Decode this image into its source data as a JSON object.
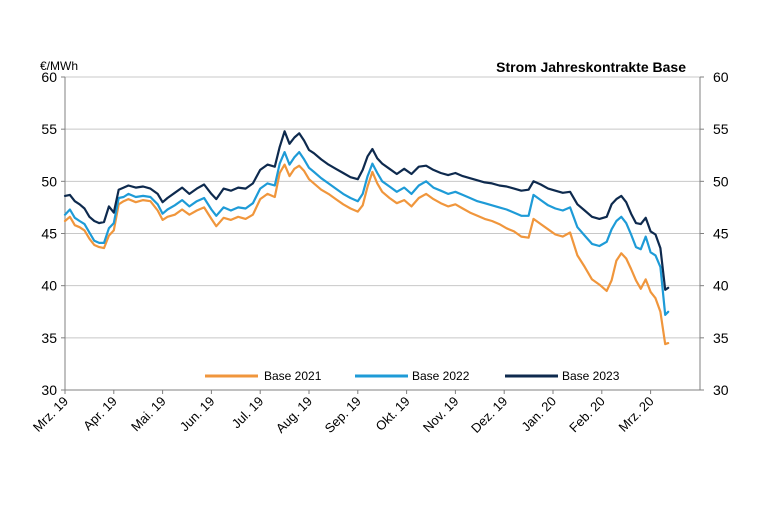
{
  "chart_data": {
    "type": "line",
    "title": "Strom Jahreskontrakte Base",
    "ylabel": "€/MWh",
    "ylim": [
      30,
      60
    ],
    "yticks": [
      30,
      35,
      40,
      45,
      50,
      55,
      60
    ],
    "grid": true,
    "legend_position": "bottom-center",
    "x_tick_labels": [
      "Mrz. 19",
      "Apr. 19",
      "Mai. 19",
      "Jun. 19",
      "Jul. 19",
      "Aug. 19",
      "Sep. 19",
      "Okt. 19",
      "Nov. 19",
      "Dez. 19",
      "Jan. 20",
      "Feb. 20",
      "Mrz. 20"
    ],
    "x_unit": "months since Mrz. 19",
    "xlim": [
      0,
      12.75
    ],
    "series": [
      {
        "name": "Base 2021",
        "color": "#F0963C",
        "points": [
          [
            0,
            46.2
          ],
          [
            0.1,
            46.6
          ],
          [
            0.2,
            45.8
          ],
          [
            0.3,
            45.6
          ],
          [
            0.4,
            45.3
          ],
          [
            0.5,
            44.5
          ],
          [
            0.6,
            43.9
          ],
          [
            0.7,
            43.7
          ],
          [
            0.8,
            43.6
          ],
          [
            0.9,
            44.8
          ],
          [
            1.0,
            45.3
          ],
          [
            1.1,
            47.8
          ],
          [
            1.2,
            48.1
          ],
          [
            1.3,
            48.3
          ],
          [
            1.45,
            48.0
          ],
          [
            1.6,
            48.2
          ],
          [
            1.75,
            48.1
          ],
          [
            1.9,
            47.2
          ],
          [
            2.0,
            46.3
          ],
          [
            2.1,
            46.6
          ],
          [
            2.25,
            46.8
          ],
          [
            2.4,
            47.3
          ],
          [
            2.55,
            46.8
          ],
          [
            2.7,
            47.2
          ],
          [
            2.85,
            47.5
          ],
          [
            3.0,
            46.4
          ],
          [
            3.1,
            45.7
          ],
          [
            3.25,
            46.5
          ],
          [
            3.4,
            46.3
          ],
          [
            3.55,
            46.6
          ],
          [
            3.7,
            46.4
          ],
          [
            3.85,
            46.8
          ],
          [
            4.0,
            48.3
          ],
          [
            4.15,
            48.8
          ],
          [
            4.3,
            48.5
          ],
          [
            4.4,
            50.8
          ],
          [
            4.5,
            51.6
          ],
          [
            4.6,
            50.5
          ],
          [
            4.7,
            51.2
          ],
          [
            4.8,
            51.5
          ],
          [
            4.9,
            51.0
          ],
          [
            5.0,
            50.2
          ],
          [
            5.1,
            49.8
          ],
          [
            5.25,
            49.2
          ],
          [
            5.4,
            48.8
          ],
          [
            5.55,
            48.3
          ],
          [
            5.7,
            47.8
          ],
          [
            5.85,
            47.4
          ],
          [
            6.0,
            47.1
          ],
          [
            6.1,
            47.7
          ],
          [
            6.2,
            49.5
          ],
          [
            6.3,
            50.9
          ],
          [
            6.4,
            49.8
          ],
          [
            6.5,
            49.0
          ],
          [
            6.65,
            48.4
          ],
          [
            6.8,
            47.9
          ],
          [
            6.95,
            48.2
          ],
          [
            7.1,
            47.6
          ],
          [
            7.25,
            48.4
          ],
          [
            7.4,
            48.8
          ],
          [
            7.55,
            48.3
          ],
          [
            7.7,
            47.9
          ],
          [
            7.85,
            47.6
          ],
          [
            8.0,
            47.8
          ],
          [
            8.15,
            47.4
          ],
          [
            8.3,
            47.0
          ],
          [
            8.45,
            46.7
          ],
          [
            8.6,
            46.4
          ],
          [
            8.75,
            46.2
          ],
          [
            8.9,
            45.9
          ],
          [
            9.05,
            45.5
          ],
          [
            9.2,
            45.2
          ],
          [
            9.35,
            44.7
          ],
          [
            9.5,
            44.6
          ],
          [
            9.6,
            46.4
          ],
          [
            9.75,
            45.9
          ],
          [
            9.9,
            45.4
          ],
          [
            10.05,
            44.9
          ],
          [
            10.2,
            44.7
          ],
          [
            10.35,
            45.1
          ],
          [
            10.5,
            42.9
          ],
          [
            10.65,
            41.8
          ],
          [
            10.8,
            40.6
          ],
          [
            10.95,
            40.1
          ],
          [
            11.1,
            39.5
          ],
          [
            11.2,
            40.5
          ],
          [
            11.3,
            42.4
          ],
          [
            11.4,
            43.1
          ],
          [
            11.5,
            42.6
          ],
          [
            11.6,
            41.6
          ],
          [
            11.7,
            40.5
          ],
          [
            11.8,
            39.7
          ],
          [
            11.9,
            40.6
          ],
          [
            12.0,
            39.4
          ],
          [
            12.1,
            38.8
          ],
          [
            12.2,
            37.5
          ],
          [
            12.3,
            34.4
          ],
          [
            12.36,
            34.5
          ]
        ]
      },
      {
        "name": "Base 2022",
        "color": "#1E9BD7",
        "points": [
          [
            0,
            46.8
          ],
          [
            0.1,
            47.3
          ],
          [
            0.2,
            46.5
          ],
          [
            0.3,
            46.2
          ],
          [
            0.4,
            45.9
          ],
          [
            0.5,
            45.1
          ],
          [
            0.6,
            44.3
          ],
          [
            0.7,
            44.1
          ],
          [
            0.8,
            44.1
          ],
          [
            0.9,
            45.5
          ],
          [
            1.0,
            46.0
          ],
          [
            1.1,
            48.4
          ],
          [
            1.2,
            48.5
          ],
          [
            1.3,
            48.8
          ],
          [
            1.45,
            48.5
          ],
          [
            1.6,
            48.6
          ],
          [
            1.75,
            48.5
          ],
          [
            1.9,
            47.8
          ],
          [
            2.0,
            46.9
          ],
          [
            2.1,
            47.3
          ],
          [
            2.25,
            47.7
          ],
          [
            2.4,
            48.2
          ],
          [
            2.55,
            47.6
          ],
          [
            2.7,
            48.1
          ],
          [
            2.85,
            48.4
          ],
          [
            3.0,
            47.3
          ],
          [
            3.1,
            46.7
          ],
          [
            3.25,
            47.5
          ],
          [
            3.4,
            47.2
          ],
          [
            3.55,
            47.5
          ],
          [
            3.7,
            47.4
          ],
          [
            3.85,
            47.9
          ],
          [
            4.0,
            49.3
          ],
          [
            4.15,
            49.8
          ],
          [
            4.3,
            49.6
          ],
          [
            4.4,
            51.7
          ],
          [
            4.5,
            52.8
          ],
          [
            4.6,
            51.6
          ],
          [
            4.7,
            52.3
          ],
          [
            4.8,
            52.8
          ],
          [
            4.9,
            52.1
          ],
          [
            5.0,
            51.3
          ],
          [
            5.1,
            50.9
          ],
          [
            5.25,
            50.3
          ],
          [
            5.4,
            49.8
          ],
          [
            5.55,
            49.3
          ],
          [
            5.7,
            48.8
          ],
          [
            5.85,
            48.4
          ],
          [
            6.0,
            48.1
          ],
          [
            6.1,
            48.8
          ],
          [
            6.2,
            50.5
          ],
          [
            6.3,
            51.7
          ],
          [
            6.4,
            50.8
          ],
          [
            6.5,
            50.0
          ],
          [
            6.65,
            49.5
          ],
          [
            6.8,
            49.0
          ],
          [
            6.95,
            49.4
          ],
          [
            7.1,
            48.8
          ],
          [
            7.25,
            49.6
          ],
          [
            7.4,
            50.0
          ],
          [
            7.55,
            49.4
          ],
          [
            7.7,
            49.1
          ],
          [
            7.85,
            48.8
          ],
          [
            8.0,
            49.0
          ],
          [
            8.15,
            48.7
          ],
          [
            8.3,
            48.4
          ],
          [
            8.45,
            48.1
          ],
          [
            8.6,
            47.9
          ],
          [
            8.75,
            47.7
          ],
          [
            8.9,
            47.5
          ],
          [
            9.05,
            47.3
          ],
          [
            9.2,
            47.0
          ],
          [
            9.35,
            46.7
          ],
          [
            9.5,
            46.7
          ],
          [
            9.6,
            48.7
          ],
          [
            9.75,
            48.2
          ],
          [
            9.9,
            47.7
          ],
          [
            10.05,
            47.4
          ],
          [
            10.2,
            47.2
          ],
          [
            10.35,
            47.5
          ],
          [
            10.5,
            45.6
          ],
          [
            10.65,
            44.8
          ],
          [
            10.8,
            44.0
          ],
          [
            10.95,
            43.8
          ],
          [
            11.1,
            44.2
          ],
          [
            11.2,
            45.4
          ],
          [
            11.3,
            46.2
          ],
          [
            11.4,
            46.6
          ],
          [
            11.5,
            46.0
          ],
          [
            11.6,
            44.9
          ],
          [
            11.7,
            43.7
          ],
          [
            11.8,
            43.5
          ],
          [
            11.9,
            44.7
          ],
          [
            12.0,
            43.2
          ],
          [
            12.1,
            42.9
          ],
          [
            12.2,
            41.8
          ],
          [
            12.3,
            37.2
          ],
          [
            12.36,
            37.5
          ]
        ]
      },
      {
        "name": "Base 2023",
        "color": "#0E2A4E",
        "points": [
          [
            0,
            48.6
          ],
          [
            0.1,
            48.7
          ],
          [
            0.2,
            48.1
          ],
          [
            0.3,
            47.8
          ],
          [
            0.4,
            47.4
          ],
          [
            0.5,
            46.6
          ],
          [
            0.6,
            46.2
          ],
          [
            0.7,
            46.0
          ],
          [
            0.8,
            46.1
          ],
          [
            0.9,
            47.6
          ],
          [
            1.0,
            47.0
          ],
          [
            1.1,
            49.2
          ],
          [
            1.2,
            49.4
          ],
          [
            1.3,
            49.6
          ],
          [
            1.45,
            49.4
          ],
          [
            1.6,
            49.5
          ],
          [
            1.75,
            49.3
          ],
          [
            1.9,
            48.8
          ],
          [
            2.0,
            48.0
          ],
          [
            2.1,
            48.4
          ],
          [
            2.25,
            48.9
          ],
          [
            2.4,
            49.4
          ],
          [
            2.55,
            48.8
          ],
          [
            2.7,
            49.3
          ],
          [
            2.85,
            49.7
          ],
          [
            3.0,
            48.8
          ],
          [
            3.1,
            48.3
          ],
          [
            3.25,
            49.3
          ],
          [
            3.4,
            49.1
          ],
          [
            3.55,
            49.4
          ],
          [
            3.7,
            49.3
          ],
          [
            3.85,
            49.8
          ],
          [
            4.0,
            51.1
          ],
          [
            4.15,
            51.6
          ],
          [
            4.3,
            51.4
          ],
          [
            4.4,
            53.3
          ],
          [
            4.5,
            54.8
          ],
          [
            4.6,
            53.6
          ],
          [
            4.7,
            54.2
          ],
          [
            4.8,
            54.6
          ],
          [
            4.9,
            53.9
          ],
          [
            5.0,
            53.0
          ],
          [
            5.1,
            52.7
          ],
          [
            5.25,
            52.1
          ],
          [
            5.4,
            51.6
          ],
          [
            5.55,
            51.2
          ],
          [
            5.7,
            50.8
          ],
          [
            5.85,
            50.4
          ],
          [
            6.0,
            50.2
          ],
          [
            6.1,
            51.1
          ],
          [
            6.2,
            52.4
          ],
          [
            6.3,
            53.1
          ],
          [
            6.4,
            52.2
          ],
          [
            6.5,
            51.7
          ],
          [
            6.65,
            51.2
          ],
          [
            6.8,
            50.7
          ],
          [
            6.95,
            51.2
          ],
          [
            7.1,
            50.7
          ],
          [
            7.25,
            51.4
          ],
          [
            7.4,
            51.5
          ],
          [
            7.55,
            51.1
          ],
          [
            7.7,
            50.8
          ],
          [
            7.85,
            50.6
          ],
          [
            8.0,
            50.8
          ],
          [
            8.15,
            50.5
          ],
          [
            8.3,
            50.3
          ],
          [
            8.45,
            50.1
          ],
          [
            8.6,
            49.9
          ],
          [
            8.75,
            49.8
          ],
          [
            8.9,
            49.6
          ],
          [
            9.05,
            49.5
          ],
          [
            9.2,
            49.3
          ],
          [
            9.35,
            49.1
          ],
          [
            9.5,
            49.2
          ],
          [
            9.6,
            50.0
          ],
          [
            9.75,
            49.7
          ],
          [
            9.9,
            49.3
          ],
          [
            10.05,
            49.1
          ],
          [
            10.2,
            48.9
          ],
          [
            10.35,
            49.0
          ],
          [
            10.5,
            47.8
          ],
          [
            10.65,
            47.2
          ],
          [
            10.8,
            46.6
          ],
          [
            10.95,
            46.4
          ],
          [
            11.1,
            46.6
          ],
          [
            11.2,
            47.8
          ],
          [
            11.3,
            48.3
          ],
          [
            11.4,
            48.6
          ],
          [
            11.5,
            48.0
          ],
          [
            11.6,
            46.9
          ],
          [
            11.7,
            46.0
          ],
          [
            11.8,
            45.9
          ],
          [
            11.9,
            46.5
          ],
          [
            12.0,
            45.2
          ],
          [
            12.1,
            44.9
          ],
          [
            12.2,
            43.6
          ],
          [
            12.3,
            39.6
          ],
          [
            12.36,
            39.8
          ]
        ]
      }
    ]
  }
}
